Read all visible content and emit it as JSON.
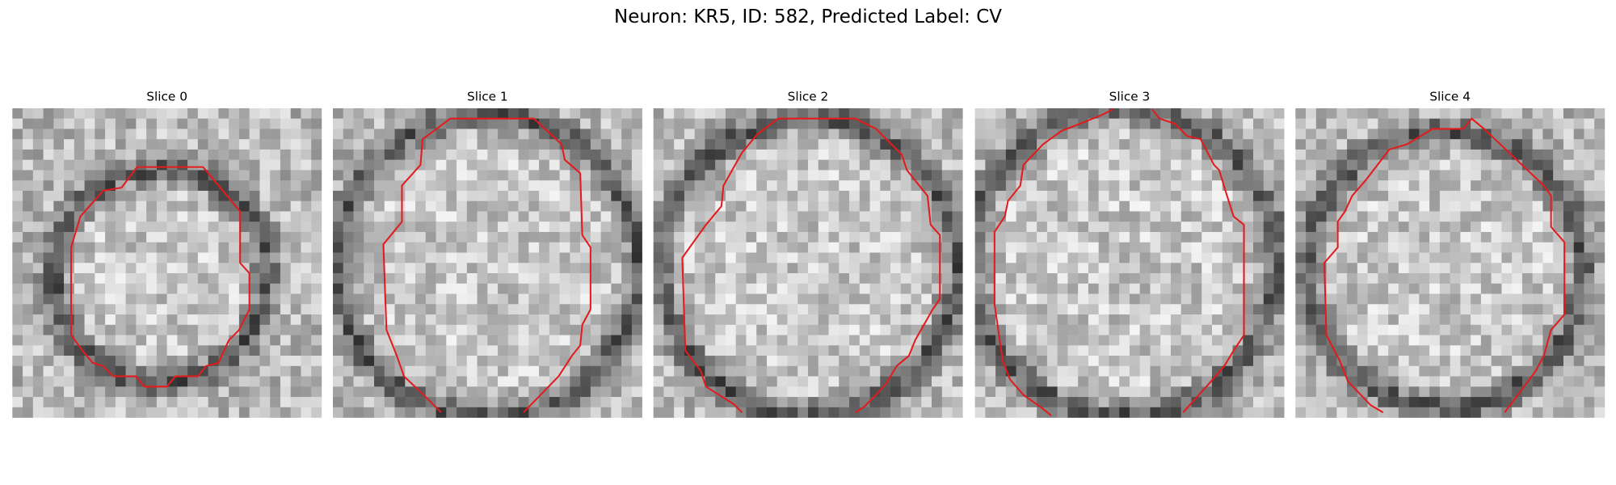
{
  "title": "Neuron: KR5, ID: 582, Predicted Label: CV",
  "panels": [
    {
      "title": "Slice 0"
    },
    {
      "title": "Slice 1"
    },
    {
      "title": "Slice 2"
    },
    {
      "title": "Slice 3"
    },
    {
      "title": "Slice 4"
    }
  ]
}
